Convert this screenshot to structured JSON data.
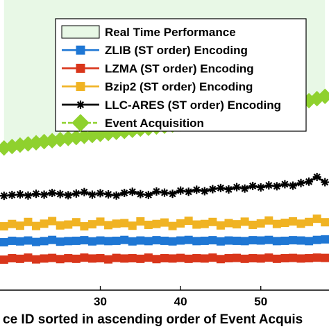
{
  "chart_data": {
    "type": "line",
    "xlabel": "ce ID sorted in ascending order of Event Acquis",
    "ylabel": "",
    "xlim": [
      17.5,
      58.5
    ],
    "ylim": [
      0,
      100
    ],
    "x_ticks": [
      30,
      40,
      50
    ],
    "grid": false,
    "legend_position": "top-right",
    "real_time_region": {
      "name": "Real Time Performance",
      "color": "#e8f8e6",
      "edge_color": "#000000"
    },
    "series": [
      {
        "name": "ZLIB (ST order) Encoding",
        "color": "#1f77d4",
        "marker": "square",
        "x": [
          18,
          19,
          20,
          21,
          22,
          23,
          24,
          25,
          26,
          27,
          28,
          29,
          30,
          31,
          32,
          33,
          34,
          35,
          36,
          37,
          38,
          39,
          40,
          41,
          42,
          43,
          44,
          45,
          46,
          47,
          48,
          49,
          50,
          51,
          52,
          53,
          54,
          55,
          56,
          57,
          58
        ],
        "y": [
          16.5,
          17.0,
          16.8,
          17.1,
          16.6,
          16.9,
          17.3,
          16.7,
          16.9,
          17.0,
          17.2,
          16.8,
          17.1,
          16.9,
          17.0,
          17.3,
          16.8,
          17.1,
          16.9,
          17.2,
          17.0,
          16.8,
          17.1,
          17.3,
          16.9,
          17.0,
          17.2,
          16.8,
          17.1,
          17.0,
          16.9,
          17.2,
          17.1,
          17.3,
          16.9,
          17.0,
          17.2,
          17.1,
          16.9,
          17.3,
          17.5
        ]
      },
      {
        "name": "LZMA (ST order) Encoding",
        "color": "#d9361b",
        "marker": "square",
        "x": [
          18,
          19,
          20,
          21,
          22,
          23,
          24,
          25,
          26,
          27,
          28,
          29,
          30,
          31,
          32,
          33,
          34,
          35,
          36,
          37,
          38,
          39,
          40,
          41,
          42,
          43,
          44,
          45,
          46,
          47,
          48,
          49,
          50,
          51,
          52,
          53,
          54,
          55,
          56,
          57,
          58
        ],
        "y": [
          10.5,
          11.0,
          10.8,
          11.2,
          10.6,
          10.9,
          11.1,
          10.7,
          11.0,
          10.8,
          11.2,
          10.9,
          11.0,
          10.6,
          11.1,
          10.9,
          11.0,
          10.8,
          11.2,
          10.7,
          11.0,
          10.9,
          11.1,
          10.8,
          11.0,
          10.9,
          11.2,
          10.7,
          11.0,
          11.1,
          10.8,
          11.0,
          10.9,
          11.2,
          10.8,
          11.0,
          11.1,
          10.9,
          11.0,
          11.2,
          11.1
        ]
      },
      {
        "name": "Bzip2 (ST order) Encoding",
        "color": "#f0b323",
        "marker": "square",
        "x": [
          18,
          19,
          20,
          21,
          22,
          23,
          24,
          25,
          26,
          27,
          28,
          29,
          30,
          31,
          32,
          33,
          34,
          35,
          36,
          37,
          38,
          39,
          40,
          41,
          42,
          43,
          44,
          45,
          46,
          47,
          48,
          49,
          50,
          51,
          52,
          53,
          54,
          55,
          56,
          57,
          58
        ],
        "y": [
          22.0,
          22.8,
          22.2,
          23.5,
          22.1,
          22.9,
          23.8,
          22.3,
          22.6,
          23.4,
          22.0,
          22.7,
          23.6,
          22.4,
          22.9,
          23.1,
          22.2,
          23.7,
          22.5,
          22.8,
          23.3,
          22.1,
          23.0,
          23.9,
          22.6,
          22.8,
          23.5,
          22.3,
          23.1,
          22.7,
          23.6,
          22.5,
          23.0,
          24.0,
          22.8,
          23.2,
          23.7,
          22.9,
          23.5,
          24.6,
          23.4
        ]
      },
      {
        "name": "LLC-ARES (ST order) Encoding",
        "color": "#000000",
        "marker": "star",
        "x": [
          18,
          19,
          20,
          21,
          22,
          23,
          24,
          25,
          26,
          27,
          28,
          29,
          30,
          31,
          32,
          33,
          34,
          35,
          36,
          37,
          38,
          39,
          40,
          41,
          42,
          43,
          44,
          45,
          46,
          47,
          48,
          49,
          50,
          51,
          52,
          53,
          54,
          55,
          56,
          57,
          58
        ],
        "y": [
          32.5,
          32.8,
          33.0,
          32.6,
          33.2,
          32.9,
          33.5,
          33.1,
          32.7,
          33.3,
          33.8,
          32.9,
          33.4,
          33.0,
          32.6,
          33.5,
          33.9,
          33.1,
          32.8,
          34.0,
          33.6,
          33.2,
          34.3,
          33.9,
          34.6,
          34.1,
          34.8,
          35.2,
          34.7,
          35.5,
          35.0,
          35.9,
          35.4,
          36.1,
          35.8,
          36.5,
          36.0,
          36.9,
          37.4,
          39.0,
          37.2
        ]
      },
      {
        "name": "Event Acquisition",
        "color": "#8fd12e",
        "marker": "diamond",
        "x": [
          18,
          19,
          20,
          21,
          22,
          23,
          24,
          25,
          26,
          27,
          28,
          29,
          30,
          31,
          32,
          33,
          34,
          35,
          36,
          37,
          38,
          39,
          40,
          41,
          42,
          43,
          44,
          45,
          46,
          47,
          48,
          49,
          50,
          51,
          52,
          53,
          54,
          55,
          56,
          57,
          58
        ],
        "y": [
          49.0,
          49.5,
          50.0,
          50.4,
          50.8,
          51.2,
          51.5,
          51.9,
          52.3,
          52.6,
          53.0,
          53.3,
          53.7,
          54.0,
          54.4,
          54.7,
          55.1,
          55.5,
          55.8,
          56.2,
          56.5,
          56.9,
          57.3,
          57.7,
          58.1,
          58.5,
          58.9,
          59.4,
          59.9,
          60.3,
          60.8,
          61.3,
          61.8,
          62.3,
          62.9,
          63.5,
          64.1,
          64.7,
          65.3,
          66.0,
          66.8
        ]
      }
    ]
  }
}
